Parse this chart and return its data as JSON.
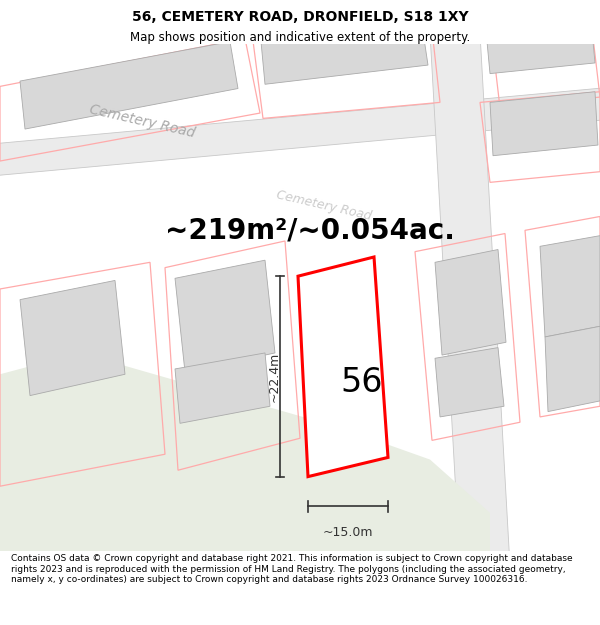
{
  "title": "56, CEMETERY ROAD, DRONFIELD, S18 1XY",
  "subtitle": "Map shows position and indicative extent of the property.",
  "area_label": "~219m²/~0.054ac.",
  "number_label": "56",
  "width_label": "~15.0m",
  "height_label": "~22.4m",
  "footer": "Contains OS data © Crown copyright and database right 2021. This information is subject to Crown copyright and database rights 2023 and is reproduced with the permission of HM Land Registry. The polygons (including the associated geometry, namely x, y co-ordinates) are subject to Crown copyright and database rights 2023 Ordnance Survey 100026316.",
  "map_bg": "#ffffff",
  "road_fill": "#ebebeb",
  "road_edge": "#c8c8c8",
  "road_label_color": "#aaaaaa",
  "plot_color": "#ff0000",
  "plot_fill": "#ffffff",
  "building_color": "#d8d8d8",
  "building_edge": "#aaaaaa",
  "plot_outline_color": "#ffaaaa",
  "green_area": "#e8ede2",
  "dim_color": "#333333",
  "title_fontsize": 10,
  "subtitle_fontsize": 8.5,
  "area_fontsize": 20,
  "number_fontsize": 24,
  "dim_fontsize": 9,
  "road_label_fontsize": 10,
  "footer_fontsize": 6.5
}
